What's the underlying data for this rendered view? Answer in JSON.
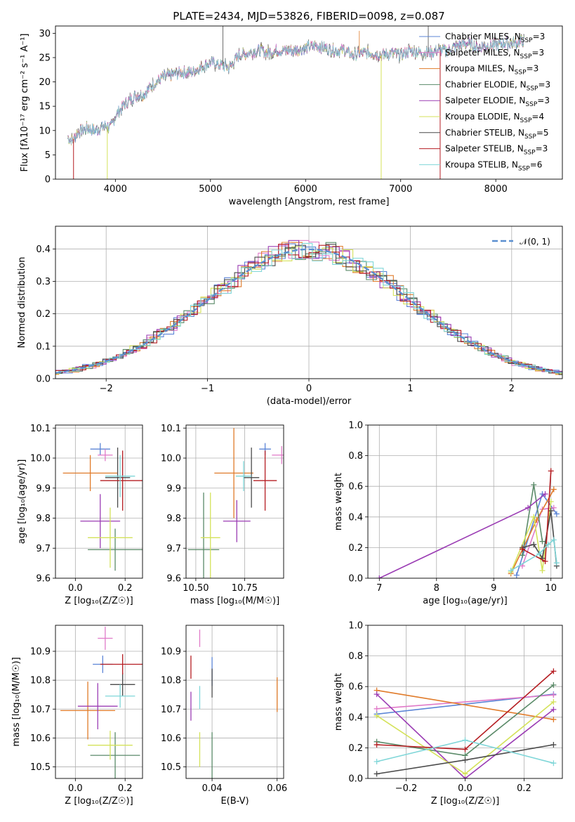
{
  "colors": {
    "Chabrier MILES": "#5b84d6",
    "Salpeter MILES": "#e07ac8",
    "Kroupa MILES": "#e07b2a",
    "Chabrier ELODIE": "#5a8a68",
    "Salpeter ELODIE": "#9b3db4",
    "Kroupa ELODIE": "#d4e25a",
    "Chabrier STELIB": "#4a4a4a",
    "Salpeter STELIB": "#b51d22",
    "Kroupa STELIB": "#7fd6d8"
  },
  "chart_data": [
    {
      "id": "spectrum",
      "type": "line",
      "title": "PLATE=2434, MJD=53826, FIBERID=0098, z=0.087",
      "xlabel": "wavelength [Angstrom, rest frame]",
      "ylabel": "Flux [fλ10⁻¹⁷ erg cm⁻² s⁻¹ A⁻¹]",
      "xlim": [
        3370,
        8700
      ],
      "ylim": [
        0,
        31.5
      ],
      "xticks": [
        4000,
        5000,
        6000,
        7000,
        8000
      ],
      "yticks": [
        0,
        5,
        10,
        15,
        20,
        25,
        30
      ],
      "legend_position": "upper-right",
      "legend": [
        {
          "model": "Chabrier MILES",
          "label": "Chabrier MILES, N",
          "sub": "SSP",
          "suffix": "=3"
        },
        {
          "model": "Salpeter MILES",
          "label": "Salpeter MILES, N",
          "sub": "SSP",
          "suffix": "=3"
        },
        {
          "model": "Kroupa MILES",
          "label": "Kroupa MILES, N",
          "sub": "SSP",
          "suffix": "=3"
        },
        {
          "model": "Chabrier ELODIE",
          "label": "Chabrier ELODIE, N",
          "sub": "SSP",
          "suffix": "=3"
        },
        {
          "model": "Salpeter ELODIE",
          "label": "Salpeter ELODIE, N",
          "sub": "SSP",
          "suffix": "=3"
        },
        {
          "model": "Kroupa ELODIE",
          "label": "Kroupa ELODIE, N",
          "sub": "SSP",
          "suffix": "=4"
        },
        {
          "model": "Chabrier STELIB",
          "label": "Chabrier STELIB, N",
          "sub": "SSP",
          "suffix": "=5"
        },
        {
          "model": "Salpeter STELIB",
          "label": "Salpeter STELIB, N",
          "sub": "SSP",
          "suffix": "=3"
        },
        {
          "model": "Kroupa STELIB",
          "label": "Kroupa STELIB, N",
          "sub": "SSP",
          "suffix": "=6"
        }
      ],
      "continuum": [
        [
          3500,
          8.5
        ],
        [
          3550,
          8.0
        ],
        [
          3600,
          9.5
        ],
        [
          3700,
          10.5
        ],
        [
          3800,
          10.0
        ],
        [
          3900,
          11.0
        ],
        [
          3950,
          10.5
        ],
        [
          4000,
          13.0
        ],
        [
          4100,
          15.5
        ],
        [
          4200,
          17.0
        ],
        [
          4300,
          17.5
        ],
        [
          4400,
          19.5
        ],
        [
          4500,
          21.0
        ],
        [
          4600,
          21.5
        ],
        [
          4700,
          22.0
        ],
        [
          4800,
          22.0
        ],
        [
          4900,
          23.0
        ],
        [
          5000,
          24.0
        ],
        [
          5100,
          23.5
        ],
        [
          5200,
          23.0
        ],
        [
          5300,
          25.5
        ],
        [
          5400,
          26.0
        ],
        [
          5500,
          26.5
        ],
        [
          5600,
          26.0
        ],
        [
          5700,
          26.5
        ],
        [
          5800,
          26.5
        ],
        [
          5900,
          26.5
        ],
        [
          6000,
          27.0
        ],
        [
          6100,
          27.5
        ],
        [
          6200,
          27.0
        ],
        [
          6300,
          26.5
        ],
        [
          6400,
          26.5
        ],
        [
          6500,
          25.5
        ],
        [
          6600,
          26.0
        ],
        [
          6700,
          26.0
        ],
        [
          6800,
          25.5
        ],
        [
          6900,
          26.0
        ],
        [
          7000,
          25.5
        ],
        [
          7100,
          26.5
        ],
        [
          7200,
          26.0
        ],
        [
          7300,
          26.0
        ],
        [
          7400,
          26.5
        ],
        [
          7500,
          26.5
        ],
        [
          7600,
          27.5
        ],
        [
          7700,
          28.0
        ],
        [
          7800,
          27.0
        ],
        [
          7900,
          27.5
        ],
        [
          8000,
          27.5
        ],
        [
          8100,
          28.0
        ],
        [
          8200,
          28.0
        ],
        [
          8300,
          28.5
        ]
      ],
      "spikes": [
        {
          "model": "Chabrier STELIB",
          "x": 5130,
          "y": 31.5
        },
        {
          "model": "Kroupa MILES",
          "x": 6565,
          "y": 30.5
        },
        {
          "model": "Chabrier STELIB",
          "x": 7290,
          "y": 31.5
        }
      ],
      "dips": [
        {
          "model": "Salpeter STELIB",
          "x": 3560,
          "y": 0
        },
        {
          "model": "Kroupa ELODIE",
          "x": 3915,
          "y": 0
        },
        {
          "model": "Kroupa ELODIE",
          "x": 6795,
          "y": 0
        },
        {
          "model": "Salpeter STELIB",
          "x": 7415,
          "y": 0
        }
      ]
    },
    {
      "id": "residuals",
      "type": "step",
      "xlabel": "(data-model)/error",
      "ylabel": "Normed distribution",
      "xlim": [
        -2.5,
        2.5
      ],
      "ylim": [
        0,
        0.47
      ],
      "xticks": [
        -2,
        -1,
        0,
        1,
        2
      ],
      "yticks": [
        0.0,
        0.1,
        0.2,
        0.3,
        0.4
      ],
      "grid": true,
      "legend_position": "upper-right",
      "legend_label": "𝒩(0, 1)",
      "bin_width": 0.1
    },
    {
      "id": "z-age",
      "type": "errorbar",
      "xlabel": "Z [log₁₀(Z/Z☉)]",
      "ylabel": "age  [log₁₀(age/yr)]",
      "xlim": [
        -0.08,
        0.27
      ],
      "ylim": [
        9.6,
        10.11
      ],
      "xticks": [
        0.0,
        0.2
      ],
      "yticks": [
        9.6,
        9.7,
        9.8,
        9.9,
        10.0,
        10.1
      ],
      "grid": true,
      "points": [
        {
          "model": "Chabrier MILES",
          "x": 0.1,
          "xerr": 0.04,
          "y": 10.03,
          "yerr": 0.02
        },
        {
          "model": "Salpeter MILES",
          "x": 0.12,
          "xerr": 0.03,
          "y": 10.01,
          "yerr": 0.02
        },
        {
          "model": "Kroupa MILES",
          "x": 0.06,
          "xerr": 0.11,
          "y": 9.95,
          "yerr": 0.06
        },
        {
          "model": "Chabrier ELODIE",
          "x": 0.16,
          "xerr": 0.11,
          "y": 9.695,
          "yerr": 0.07
        },
        {
          "model": "Salpeter ELODIE",
          "x": 0.1,
          "xerr": 0.08,
          "y": 9.79,
          "yerr": 0.09
        },
        {
          "model": "Kroupa ELODIE",
          "x": 0.14,
          "xerr": 0.09,
          "y": 9.735,
          "yerr": 0.1
        },
        {
          "model": "Chabrier STELIB",
          "x": 0.17,
          "xerr": 0.05,
          "y": 9.935,
          "yerr": 0.1
        },
        {
          "model": "Salpeter STELIB",
          "x": 0.19,
          "xerr": 0.09,
          "y": 9.925,
          "yerr": 0.1
        },
        {
          "model": "Kroupa STELIB",
          "x": 0.18,
          "xerr": 0.06,
          "y": 9.94,
          "yerr": 0.07
        }
      ]
    },
    {
      "id": "mass-age",
      "type": "errorbar",
      "xlabel": "mass [log₁₀(M/M☉)]",
      "xlim": [
        10.45,
        10.95
      ],
      "ylim": [
        9.6,
        10.11
      ],
      "xticks": [
        10.5,
        10.75
      ],
      "yticks": [
        9.6,
        9.7,
        9.8,
        9.9,
        10.0,
        10.1
      ],
      "grid": true,
      "points": [
        {
          "model": "Chabrier MILES",
          "x": 10.855,
          "xerr": 0.03,
          "y": 10.03,
          "yerr": 0.02
        },
        {
          "model": "Salpeter MILES",
          "x": 10.94,
          "xerr": 0.05,
          "y": 10.01,
          "yerr": 0.03
        },
        {
          "model": "Kroupa MILES",
          "x": 10.695,
          "xerr": 0.1,
          "y": 9.95,
          "yerr": 0.15
        },
        {
          "model": "Chabrier ELODIE",
          "x": 10.54,
          "xerr": 0.08,
          "y": 9.695,
          "yerr": 0.19
        },
        {
          "model": "Salpeter ELODIE",
          "x": 10.71,
          "xerr": 0.07,
          "y": 9.79,
          "yerr": 0.07
        },
        {
          "model": "Kroupa ELODIE",
          "x": 10.575,
          "xerr": 0.05,
          "y": 9.735,
          "yerr": 0.15
        },
        {
          "model": "Chabrier STELIB",
          "x": 10.785,
          "xerr": 0.04,
          "y": 9.935,
          "yerr": 0.1
        },
        {
          "model": "Salpeter STELIB",
          "x": 10.855,
          "xerr": 0.06,
          "y": 9.925,
          "yerr": 0.1
        },
        {
          "model": "Kroupa STELIB",
          "x": 10.745,
          "xerr": 0.04,
          "y": 9.94,
          "yerr": 0.05
        }
      ]
    },
    {
      "id": "age-weight",
      "type": "line",
      "xlabel": "age  [log₁₀(age/yr)]",
      "ylabel": "mass weight",
      "xlim": [
        6.8,
        10.2
      ],
      "ylim": [
        0,
        1.0
      ],
      "xticks": [
        7,
        8,
        9,
        10
      ],
      "yticks": [
        0.0,
        0.2,
        0.4,
        0.6,
        0.8,
        1.0
      ],
      "grid": true,
      "series": [
        {
          "model": "Chabrier MILES",
          "x": [
            9.4,
            9.85,
            10.1
          ],
          "y": [
            0.02,
            0.55,
            0.42
          ]
        },
        {
          "model": "Salpeter MILES",
          "x": [
            9.5,
            9.85,
            10.05
          ],
          "y": [
            0.08,
            0.45,
            0.46
          ]
        },
        {
          "model": "Kroupa MILES",
          "x": [
            9.3,
            9.75,
            10.05
          ],
          "y": [
            0.03,
            0.38,
            0.58
          ]
        },
        {
          "model": "Chabrier ELODIE",
          "x": [
            9.5,
            9.7,
            9.85
          ],
          "y": [
            0.15,
            0.61,
            0.24
          ]
        },
        {
          "model": "Salpeter ELODIE",
          "x": [
            7.0,
            9.6,
            9.9
          ],
          "y": [
            0.0,
            0.46,
            0.55
          ]
        },
        {
          "model": "Kroupa ELODIE",
          "x": [
            9.3,
            9.7,
            9.85,
            10.0
          ],
          "y": [
            0.04,
            0.4,
            0.05,
            0.5
          ]
        },
        {
          "model": "Chabrier STELIB",
          "x": [
            9.5,
            9.7,
            9.85,
            10.0,
            10.1
          ],
          "y": [
            0.2,
            0.22,
            0.13,
            0.44,
            0.08
          ]
        },
        {
          "model": "Salpeter STELIB",
          "x": [
            9.5,
            9.9,
            10.0
          ],
          "y": [
            0.19,
            0.11,
            0.7
          ]
        },
        {
          "model": "Kroupa STELIB",
          "x": [
            9.3,
            9.8,
            9.95,
            10.05,
            10.1
          ],
          "y": [
            0.05,
            0.16,
            0.22,
            0.25,
            0.1
          ]
        }
      ]
    },
    {
      "id": "z-mass",
      "type": "errorbar",
      "xlabel": "Z [log₁₀(Z/Z☉)]",
      "ylabel": "mass [log₁₀(M/M☉)]",
      "xlim": [
        -0.08,
        0.27
      ],
      "ylim": [
        10.46,
        10.99
      ],
      "xticks": [
        0.0,
        0.2
      ],
      "yticks": [
        10.5,
        10.6,
        10.7,
        10.8,
        10.9
      ],
      "grid": true,
      "points": [
        {
          "model": "Chabrier MILES",
          "x": 0.11,
          "xerr": 0.04,
          "y": 10.855,
          "yerr": 0.03
        },
        {
          "model": "Salpeter MILES",
          "x": 0.12,
          "xerr": 0.03,
          "y": 10.945,
          "yerr": 0.04
        },
        {
          "model": "Kroupa MILES",
          "x": 0.05,
          "xerr": 0.11,
          "y": 10.695,
          "yerr": 0.1
        },
        {
          "model": "Chabrier ELODIE",
          "x": 0.16,
          "xerr": 0.1,
          "y": 10.54,
          "yerr": 0.08
        },
        {
          "model": "Salpeter ELODIE",
          "x": 0.09,
          "xerr": 0.08,
          "y": 10.71,
          "yerr": 0.08
        },
        {
          "model": "Kroupa ELODIE",
          "x": 0.14,
          "xerr": 0.09,
          "y": 10.575,
          "yerr": 0.05
        },
        {
          "model": "Chabrier STELIB",
          "x": 0.19,
          "xerr": 0.05,
          "y": 10.785,
          "yerr": 0.04
        },
        {
          "model": "Salpeter STELIB",
          "x": 0.19,
          "xerr": 0.09,
          "y": 10.855,
          "yerr": 0.035
        },
        {
          "model": "Kroupa STELIB",
          "x": 0.18,
          "xerr": 0.06,
          "y": 10.745,
          "yerr": 0.04
        }
      ]
    },
    {
      "id": "ebv-mass",
      "type": "errorbar",
      "xlabel": "E(B-V)",
      "xlim": [
        0.032,
        0.062
      ],
      "ylim": [
        10.46,
        10.99
      ],
      "xticks": [
        0.04,
        0.06
      ],
      "yticks": [
        10.5,
        10.6,
        10.7,
        10.8,
        10.9
      ],
      "grid": true,
      "points": [
        {
          "model": "Chabrier MILES",
          "x": 0.04,
          "xerr": 0.0,
          "y": 10.83,
          "yerr": 0.05
        },
        {
          "model": "Salpeter MILES",
          "x": 0.0362,
          "xerr": 0.0,
          "y": 10.945,
          "yerr": 0.03
        },
        {
          "model": "Kroupa MILES",
          "x": 0.06,
          "xerr": 0.0,
          "y": 10.75,
          "yerr": 0.06
        },
        {
          "model": "Chabrier ELODIE",
          "x": 0.04,
          "xerr": 0.0,
          "y": 10.54,
          "yerr": 0.08
        },
        {
          "model": "Salpeter ELODIE",
          "x": 0.0335,
          "xerr": 0.0,
          "y": 10.71,
          "yerr": 0.05
        },
        {
          "model": "Kroupa ELODIE",
          "x": 0.0362,
          "xerr": 0.0,
          "y": 10.56,
          "yerr": 0.06
        },
        {
          "model": "Chabrier STELIB",
          "x": 0.04,
          "xerr": 0.0,
          "y": 10.79,
          "yerr": 0.05
        },
        {
          "model": "Salpeter STELIB",
          "x": 0.0335,
          "xerr": 0.0,
          "y": 10.845,
          "yerr": 0.04
        },
        {
          "model": "Kroupa STELIB",
          "x": 0.0362,
          "xerr": 0.0,
          "y": 10.74,
          "yerr": 0.04
        }
      ]
    },
    {
      "id": "z-weight",
      "type": "line",
      "xlabel": "Z [log₁₀(Z/Z☉)]",
      "ylabel": "mass weight",
      "xlim": [
        -0.33,
        0.33
      ],
      "ylim": [
        0,
        1.0
      ],
      "xticks": [
        -0.2,
        0.0,
        0.2
      ],
      "yticks": [
        0.0,
        0.2,
        0.4,
        0.6,
        0.8,
        1.0
      ],
      "grid": true,
      "series": [
        {
          "model": "Chabrier MILES",
          "x": [
            -0.3,
            0.3
          ],
          "y": [
            0.42,
            0.55
          ]
        },
        {
          "model": "Salpeter MILES",
          "x": [
            -0.3,
            0.3
          ],
          "y": [
            0.455,
            0.545
          ]
        },
        {
          "model": "Kroupa MILES",
          "x": [
            -0.3,
            0.3
          ],
          "y": [
            0.575,
            0.385
          ]
        },
        {
          "model": "Chabrier ELODIE",
          "x": [
            -0.3,
            0.0,
            0.3
          ],
          "y": [
            0.24,
            0.15,
            0.61
          ]
        },
        {
          "model": "Salpeter ELODIE",
          "x": [
            -0.3,
            0.0,
            0.3
          ],
          "y": [
            0.55,
            0.0,
            0.45
          ]
        },
        {
          "model": "Kroupa ELODIE",
          "x": [
            -0.3,
            0.0,
            0.3
          ],
          "y": [
            0.41,
            0.03,
            0.5
          ]
        },
        {
          "model": "Chabrier STELIB",
          "x": [
            -0.3,
            0.0,
            0.3
          ],
          "y": [
            0.03,
            0.12,
            0.22
          ]
        },
        {
          "model": "Salpeter STELIB",
          "x": [
            -0.3,
            0.0,
            0.3
          ],
          "y": [
            0.22,
            0.19,
            0.7
          ]
        },
        {
          "model": "Kroupa STELIB",
          "x": [
            -0.3,
            0.0,
            0.3
          ],
          "y": [
            0.11,
            0.25,
            0.1
          ]
        }
      ]
    }
  ]
}
